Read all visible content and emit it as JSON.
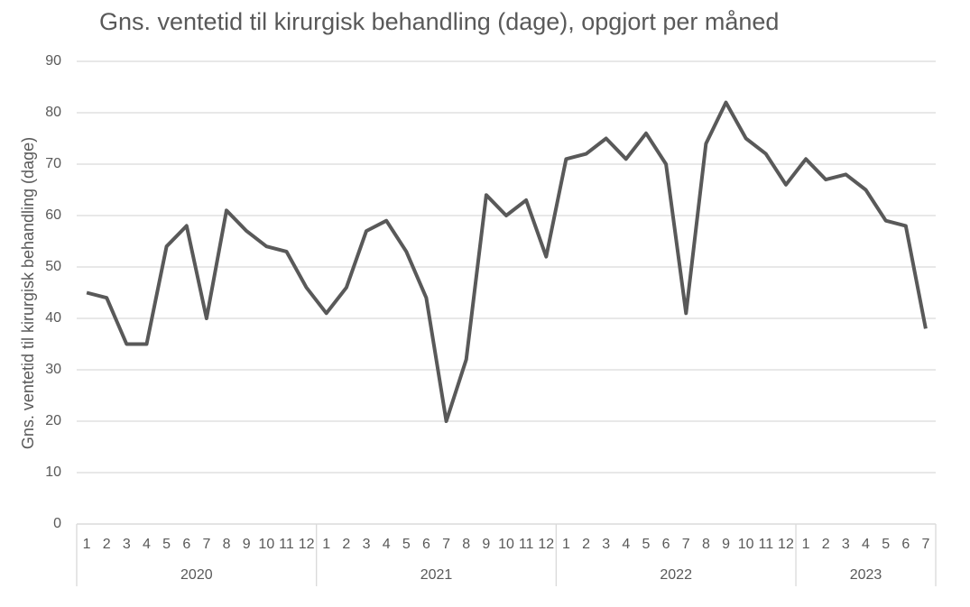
{
  "chart_data": {
    "type": "line",
    "title": "Gns. ventetid til kirurgisk behandling (dage), opgjort per måned",
    "y_label": "Gns. ventetid til kirurgisk behandling (dage)",
    "color": "#595959",
    "ylim": [
      0,
      90
    ],
    "yticks": [
      0,
      10,
      20,
      30,
      40,
      50,
      60,
      70,
      80,
      90
    ],
    "grid": true,
    "groups": [
      {
        "label": "2020",
        "categories": [
          "1",
          "2",
          "3",
          "4",
          "5",
          "6",
          "7",
          "8",
          "9",
          "10",
          "11",
          "12"
        ],
        "values": [
          45,
          44,
          35,
          35,
          54,
          58,
          40,
          61,
          57,
          54,
          53,
          46
        ]
      },
      {
        "label": "2021",
        "categories": [
          "1",
          "2",
          "3",
          "4",
          "5",
          "6",
          "7",
          "8",
          "9",
          "10",
          "11",
          "12"
        ],
        "values": [
          41,
          46,
          57,
          59,
          53,
          44,
          20,
          32,
          64,
          60,
          63,
          52
        ]
      },
      {
        "label": "2022",
        "categories": [
          "1",
          "2",
          "3",
          "4",
          "5",
          "6",
          "7",
          "8",
          "9",
          "10",
          "11",
          "12"
        ],
        "values": [
          71,
          72,
          75,
          71,
          76,
          70,
          41,
          74,
          82,
          75,
          72,
          66
        ]
      },
      {
        "label": "2023",
        "categories": [
          "1",
          "2",
          "3",
          "4",
          "5",
          "6",
          "7"
        ],
        "values": [
          71,
          67,
          68,
          65,
          59,
          58,
          38
        ]
      }
    ]
  }
}
